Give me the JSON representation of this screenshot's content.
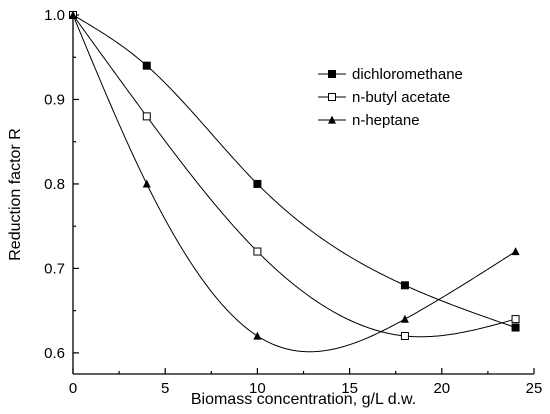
{
  "chart_data": {
    "type": "line",
    "xlabel": "Biomass concentration, g/L d.w.",
    "ylabel": "Reduction factor R",
    "xlim": [
      0,
      25
    ],
    "ylim": [
      0.575,
      1.0
    ],
    "x_ticks": [
      "0",
      "5",
      "10",
      "15",
      "20",
      "25"
    ],
    "y_ticks": [
      "0.6",
      "0.7",
      "0.8",
      "0.9",
      "1.0"
    ],
    "legend_position": "top-right",
    "grid": false,
    "series": [
      {
        "name": "dichloromethane",
        "marker": "square-filled",
        "x": [
          0,
          4,
          10,
          18,
          24
        ],
        "y": [
          1.0,
          0.94,
          0.8,
          0.68,
          0.63
        ]
      },
      {
        "name": "n-butyl acetate",
        "marker": "square-open",
        "x": [
          0,
          4,
          10,
          18,
          24
        ],
        "y": [
          1.0,
          0.88,
          0.72,
          0.62,
          0.64
        ]
      },
      {
        "name": "n-heptane",
        "marker": "triangle-filled",
        "x": [
          0,
          4,
          10,
          18,
          24
        ],
        "y": [
          1.0,
          0.8,
          0.62,
          0.64,
          0.72
        ]
      }
    ]
  }
}
